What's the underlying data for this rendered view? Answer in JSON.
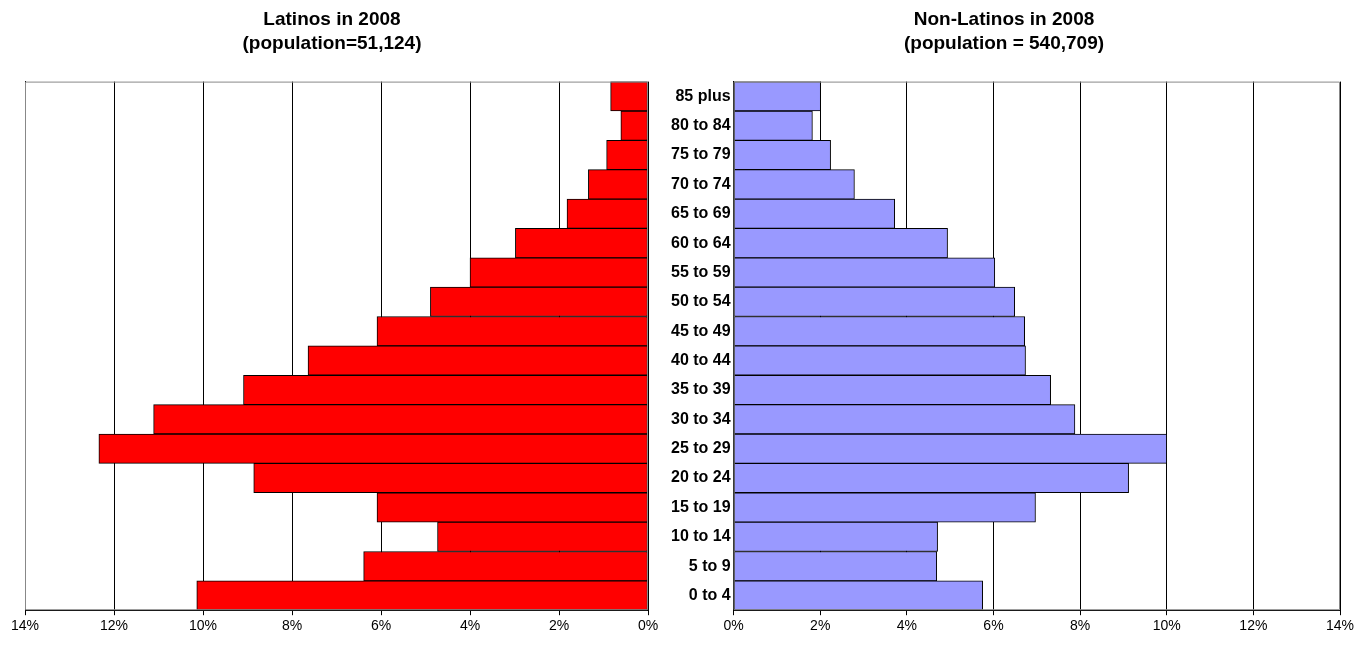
{
  "chart_data": [
    {
      "type": "bar",
      "orientation": "horizontal",
      "title": "Latinos in 2008",
      "subtitle": "(population=51,124)",
      "categories": [
        null,
        null,
        null,
        null,
        null,
        null,
        null,
        null,
        null,
        null,
        null,
        null,
        null,
        null,
        null,
        null,
        null,
        null
      ],
      "values": [
        0.84,
        0.61,
        0.93,
        1.34,
        1.82,
        2.98,
        4.0,
        4.89,
        6.09,
        7.64,
        9.09,
        11.11,
        12.34,
        8.86,
        6.09,
        4.73,
        6.39,
        10.14
      ],
      "color": "#ff0000",
      "xlim": [
        14,
        0
      ],
      "xticks": [
        {
          "value": 14,
          "label": "14%"
        },
        {
          "value": 12,
          "label": "12%"
        },
        {
          "value": 10,
          "label": "10%"
        },
        {
          "value": 8,
          "label": "8%"
        },
        {
          "value": 6,
          "label": "6%"
        },
        {
          "value": 4,
          "label": "4%"
        },
        {
          "value": 2,
          "label": "2%"
        },
        {
          "value": 0,
          "label": "0%"
        }
      ],
      "grid": "x"
    },
    {
      "type": "bar",
      "orientation": "horizontal",
      "title": "Non-Latinos in 2008",
      "subtitle": "(population = 540,709)",
      "categories": [
        "85 plus",
        "80 to 84",
        "75 to 79",
        "70 to 74",
        "65 to 69",
        "60 to 64",
        "55 to 59",
        "50 to 54",
        "45 to 49",
        "40 to 44",
        "35 to 39",
        "30 to 34",
        "25 to 29",
        "20 to 24",
        "15 to 19",
        "10 to 14",
        "5 to 9",
        "0 to 4"
      ],
      "values": [
        2.01,
        1.82,
        2.24,
        2.79,
        3.72,
        4.94,
        6.03,
        6.49,
        6.72,
        6.74,
        7.32,
        7.88,
        10.0,
        9.12,
        6.97,
        4.71,
        4.69,
        5.75
      ],
      "color": "#9999ff",
      "xlim": [
        0,
        14
      ],
      "xticks": [
        {
          "value": 0,
          "label": "0%"
        },
        {
          "value": 2,
          "label": "2%"
        },
        {
          "value": 4,
          "label": "4%"
        },
        {
          "value": 6,
          "label": "6%"
        },
        {
          "value": 8,
          "label": "8%"
        },
        {
          "value": 10,
          "label": "10%"
        },
        {
          "value": 12,
          "label": "12%"
        },
        {
          "value": 14,
          "label": "14%"
        }
      ],
      "grid": "x"
    }
  ]
}
